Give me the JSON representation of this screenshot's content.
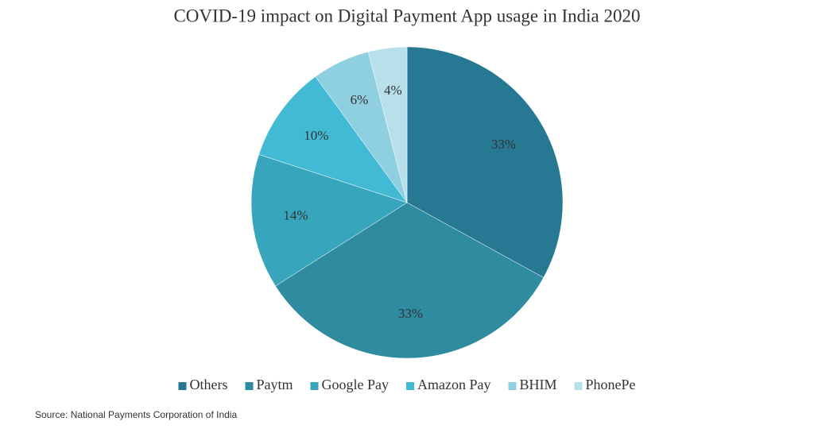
{
  "chart_data": {
    "type": "pie",
    "title": "COVID-19 impact on Digital Payment App usage in India 2020",
    "categories": [
      "Others",
      "Paytm",
      "Google Pay",
      "Amazon Pay",
      "BHIM",
      "PhonePe"
    ],
    "values": [
      33,
      33,
      14,
      10,
      6,
      4
    ],
    "value_labels": [
      "33%",
      "33%",
      "14%",
      "10%",
      "6%",
      "4%"
    ],
    "colors": [
      "#267893",
      "#2e8ba0",
      "#37a5bc",
      "#42bad4",
      "#8ecfe0",
      "#b8e0ea"
    ],
    "legend": "bottom",
    "source": "Source: National Payments Corporation of India"
  }
}
